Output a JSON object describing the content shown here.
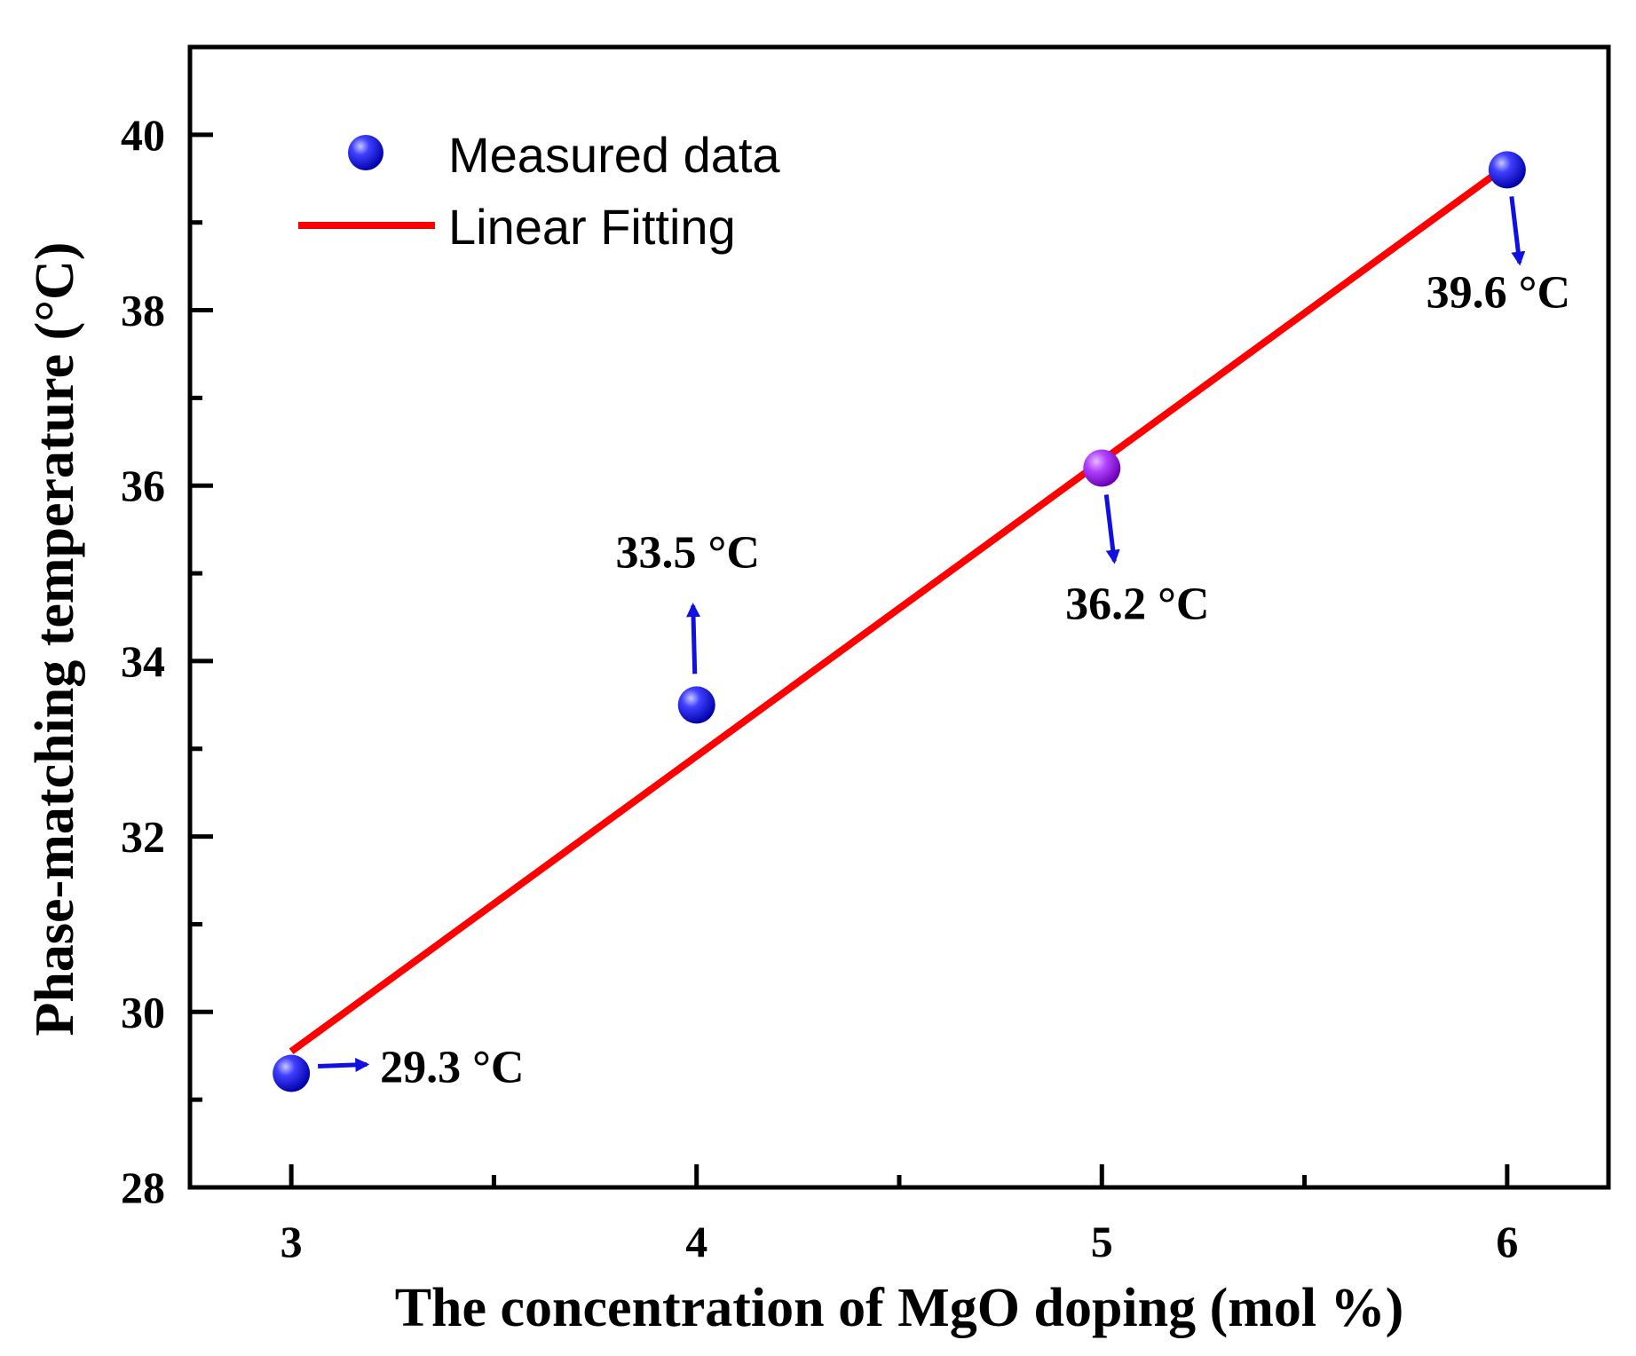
{
  "chart_data": {
    "type": "scatter",
    "title": "",
    "xlabel": "The concentration of MgO doping (mol %)",
    "ylabel": "Phase-matching temperature (°C)",
    "xlim": [
      2.75,
      6.25
    ],
    "ylim": [
      28,
      41
    ],
    "x_ticks": [
      3,
      4,
      5,
      6
    ],
    "y_ticks": [
      28,
      30,
      32,
      34,
      36,
      38,
      40
    ],
    "x_tick_labels": [
      "3",
      "4",
      "5",
      "6"
    ],
    "y_tick_labels": [
      "28",
      "30",
      "32",
      "34",
      "36",
      "38",
      "40"
    ],
    "grid": false,
    "legend_position": "top-left",
    "series": [
      {
        "name": "Measured data",
        "kind": "scatter",
        "color": "#1414e6",
        "x": [
          3,
          4,
          5,
          6
        ],
        "y": [
          29.3,
          33.5,
          36.2,
          39.6
        ]
      },
      {
        "name": "Linear Fitting",
        "kind": "line",
        "color": "#ff0000",
        "x": [
          3,
          6
        ],
        "y": [
          29.55,
          39.65
        ]
      }
    ],
    "annotations": [
      {
        "text": "29.3 °C",
        "x": 3,
        "y": 29.3,
        "direction": "right"
      },
      {
        "text": "33.5 °C",
        "x": 4,
        "y": 33.5,
        "direction": "up"
      },
      {
        "text": "36.2 °C",
        "x": 5,
        "y": 36.2,
        "direction": "down"
      },
      {
        "text": "39.6 °C",
        "x": 6,
        "y": 39.6,
        "direction": "down"
      }
    ]
  }
}
